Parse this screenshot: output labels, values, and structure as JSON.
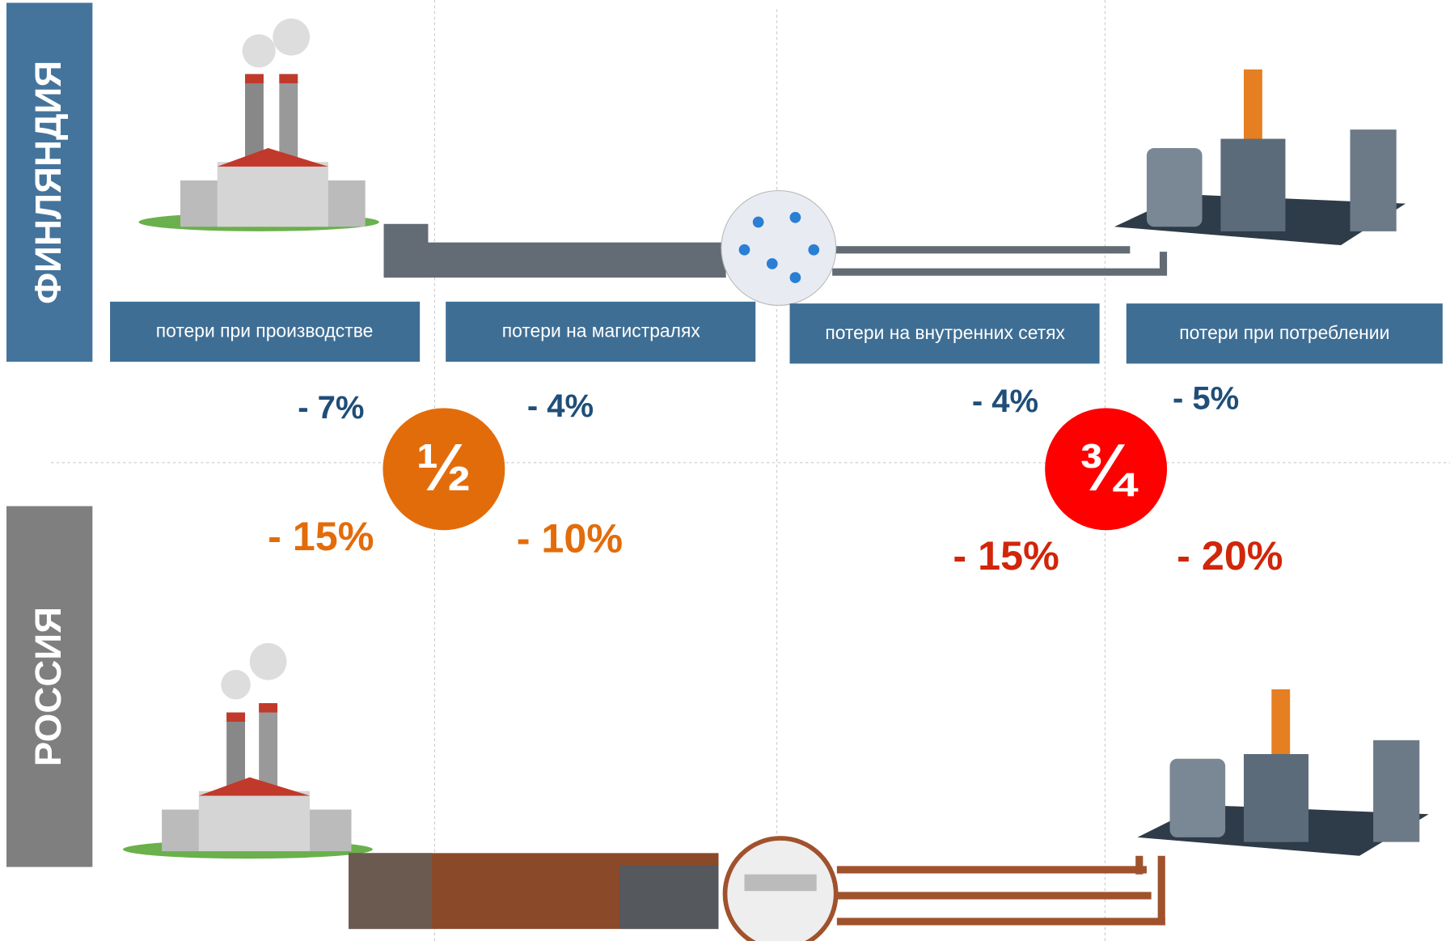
{
  "countries": {
    "top": "ФИНЛЯНДИЯ",
    "bottom": "РОССИЯ"
  },
  "stages": [
    "потери при производстве",
    "потери на магистралях",
    "потери на внутренних сетях",
    "потери при потреблении"
  ],
  "finland_losses": [
    "- 7%",
    "- 4%",
    "- 4%",
    "- 5%"
  ],
  "russia_losses": [
    "- 15%",
    "- 10%",
    "- 15%",
    "- 20%"
  ],
  "ratios": [
    "½",
    "¾"
  ]
}
